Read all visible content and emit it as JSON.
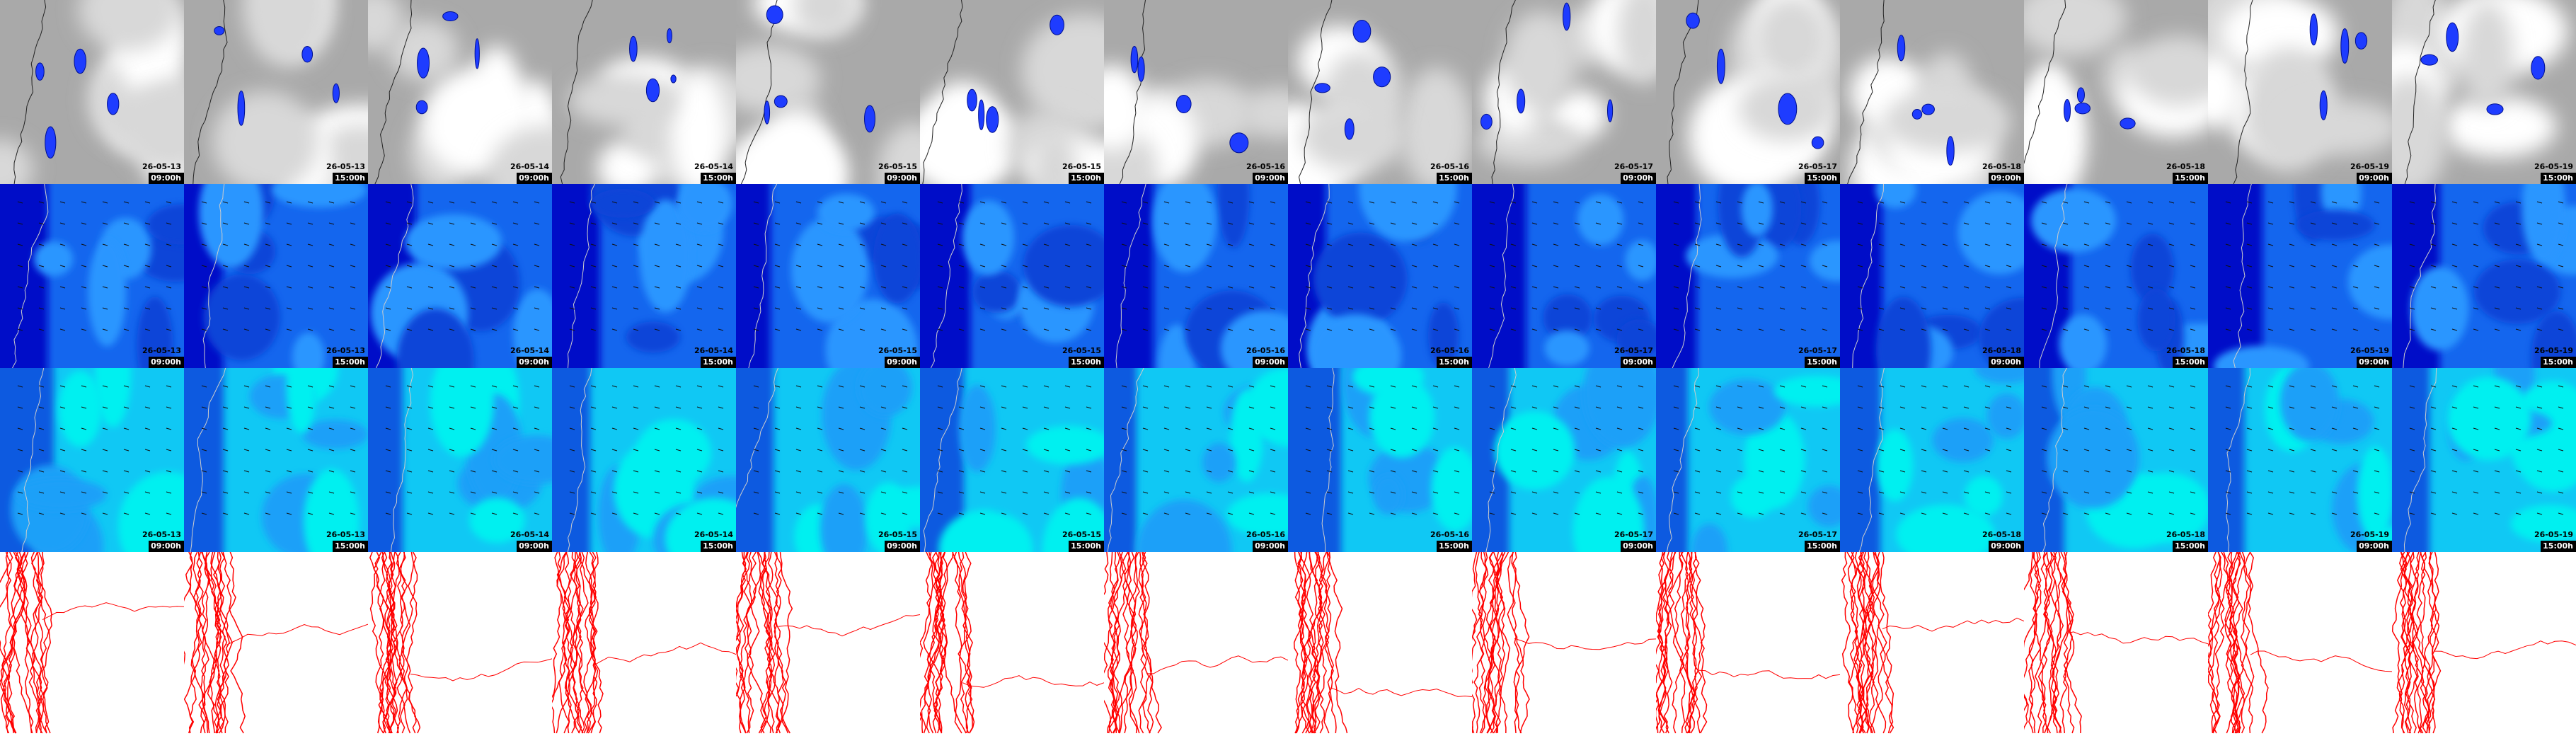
{
  "columns": [
    {
      "date": "26-05-13",
      "time": "09:00h"
    },
    {
      "date": "26-05-13",
      "time": "15:00h"
    },
    {
      "date": "26-05-14",
      "time": "09:00h"
    },
    {
      "date": "26-05-14",
      "time": "15:00h"
    },
    {
      "date": "26-05-15",
      "time": "09:00h"
    },
    {
      "date": "26-05-15",
      "time": "15:00h"
    },
    {
      "date": "26-05-16",
      "time": "09:00h"
    },
    {
      "date": "26-05-16",
      "time": "15:00h"
    },
    {
      "date": "26-05-17",
      "time": "09:00h"
    },
    {
      "date": "26-05-17",
      "time": "15:00h"
    },
    {
      "date": "26-05-18",
      "time": "09:00h"
    },
    {
      "date": "26-05-18",
      "time": "15:00h"
    },
    {
      "date": "26-05-19",
      "time": "09:00h"
    },
    {
      "date": "26-05-19",
      "time": "15:00h"
    }
  ]
}
